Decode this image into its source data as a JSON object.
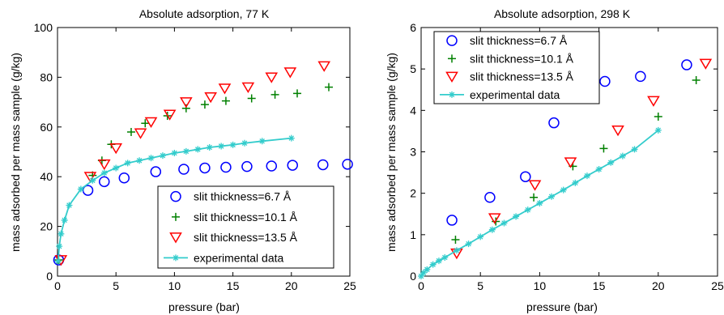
{
  "colors": {
    "slit_6_7": "#0000ff",
    "slit_10_1": "#008000",
    "slit_13_5": "#ff0000",
    "experimental": "#33cccc",
    "axis": "#000000"
  },
  "chart_data": [
    {
      "type": "scatter",
      "title": "Absolute adsorption, 77 K",
      "xlabel": "pressure (bar)",
      "ylabel": "mass adsorbed per mass sample (g/kg)",
      "xlim": [
        0,
        25
      ],
      "ylim": [
        0,
        100
      ],
      "xticks": [
        0,
        5,
        10,
        15,
        20,
        25
      ],
      "yticks": [
        0,
        20,
        40,
        60,
        80,
        100
      ],
      "grid": false,
      "legend_position": "lower-right",
      "series": [
        {
          "name": "slit thickness=6.7 Å",
          "marker": "circle",
          "color": "#0000ff",
          "x": [
            0.1,
            2.6,
            4.0,
            5.7,
            8.4,
            10.8,
            12.6,
            14.4,
            16.2,
            18.3,
            20.1,
            22.7,
            24.8
          ],
          "y": [
            6.5,
            34.5,
            38.0,
            39.5,
            42.0,
            43.0,
            43.5,
            43.8,
            44.1,
            44.3,
            44.6,
            44.8,
            45.0
          ]
        },
        {
          "name": "slit thickness=10.1 Å",
          "marker": "plus",
          "color": "#008000",
          "x": [
            0.1,
            3.0,
            3.8,
            4.6,
            6.3,
            7.5,
            9.4,
            11.0,
            12.6,
            14.4,
            16.6,
            18.6,
            20.5,
            23.2
          ],
          "y": [
            6.5,
            40.5,
            46.5,
            53.0,
            58.0,
            61.5,
            64.5,
            67.5,
            69.0,
            70.5,
            71.5,
            73.0,
            73.5,
            76.0
          ]
        },
        {
          "name": "slit thickness=13.5 Å",
          "marker": "triangle-down",
          "color": "#ff0000",
          "x": [
            0.3,
            2.8,
            4.0,
            5.0,
            7.1,
            8.0,
            9.6,
            11.0,
            13.1,
            14.3,
            16.3,
            18.3,
            19.9,
            22.8
          ],
          "y": [
            6.5,
            40.0,
            45.0,
            51.5,
            57.5,
            62.0,
            65.0,
            70.0,
            72.0,
            75.5,
            76.0,
            80.0,
            82.0,
            84.5
          ]
        },
        {
          "name": "experimental data",
          "marker": "asterisk-line",
          "color": "#33cccc",
          "x": [
            0.05,
            0.15,
            0.3,
            0.6,
            1.0,
            2.0,
            3.0,
            4.0,
            5.0,
            6.0,
            7.0,
            8.0,
            9.0,
            10.0,
            11.0,
            12.0,
            13.0,
            14.0,
            15.0,
            16.0,
            17.5,
            20.0
          ],
          "y": [
            6.0,
            12.0,
            17.0,
            22.5,
            28.5,
            35.0,
            38.5,
            41.5,
            43.5,
            45.5,
            46.5,
            47.5,
            48.5,
            49.5,
            50.2,
            51.0,
            51.8,
            52.3,
            52.8,
            53.5,
            54.3,
            55.5
          ]
        }
      ]
    },
    {
      "type": "scatter",
      "title": "Absolute adsorption, 298 K",
      "xlabel": "pressure (bar)",
      "ylabel": "mass adsorbed per mass sample (g/kg)",
      "xlim": [
        0,
        25
      ],
      "ylim": [
        0,
        6
      ],
      "xticks": [
        0,
        5,
        10,
        15,
        20,
        25
      ],
      "yticks": [
        0,
        1,
        2,
        3,
        4,
        5,
        6
      ],
      "grid": false,
      "legend_position": "top-left",
      "series": [
        {
          "name": "slit thickness=6.7 Å",
          "marker": "circle",
          "color": "#0000ff",
          "x": [
            2.6,
            5.8,
            8.8,
            11.2,
            15.5,
            18.5,
            22.4
          ],
          "y": [
            1.35,
            1.9,
            2.4,
            3.7,
            4.7,
            4.82,
            5.1
          ]
        },
        {
          "name": "slit thickness=10.1 Å",
          "marker": "plus",
          "color": "#008000",
          "x": [
            2.9,
            6.3,
            9.5,
            12.8,
            15.4,
            20.0,
            23.2
          ],
          "y": [
            0.88,
            1.32,
            1.9,
            2.65,
            3.08,
            3.85,
            4.73
          ]
        },
        {
          "name": "slit thickness=13.5 Å",
          "marker": "triangle-down",
          "color": "#ff0000",
          "x": [
            3.0,
            6.2,
            9.6,
            12.6,
            16.6,
            19.6,
            24.0
          ],
          "y": [
            0.55,
            1.4,
            2.2,
            2.75,
            3.52,
            4.23,
            5.13
          ]
        },
        {
          "name": "experimental data",
          "marker": "asterisk-line",
          "color": "#33cccc",
          "x": [
            0.0,
            0.2,
            0.5,
            1.0,
            1.5,
            2.0,
            3.0,
            4.0,
            5.0,
            6.0,
            7.0,
            8.0,
            9.0,
            10.0,
            11.0,
            12.0,
            13.0,
            14.0,
            15.0,
            16.0,
            17.0,
            18.0,
            20.0
          ],
          "y": [
            0.0,
            0.08,
            0.16,
            0.28,
            0.37,
            0.45,
            0.62,
            0.78,
            0.95,
            1.12,
            1.28,
            1.44,
            1.6,
            1.76,
            1.92,
            2.08,
            2.25,
            2.42,
            2.58,
            2.74,
            2.9,
            3.06,
            3.52
          ]
        }
      ]
    }
  ]
}
